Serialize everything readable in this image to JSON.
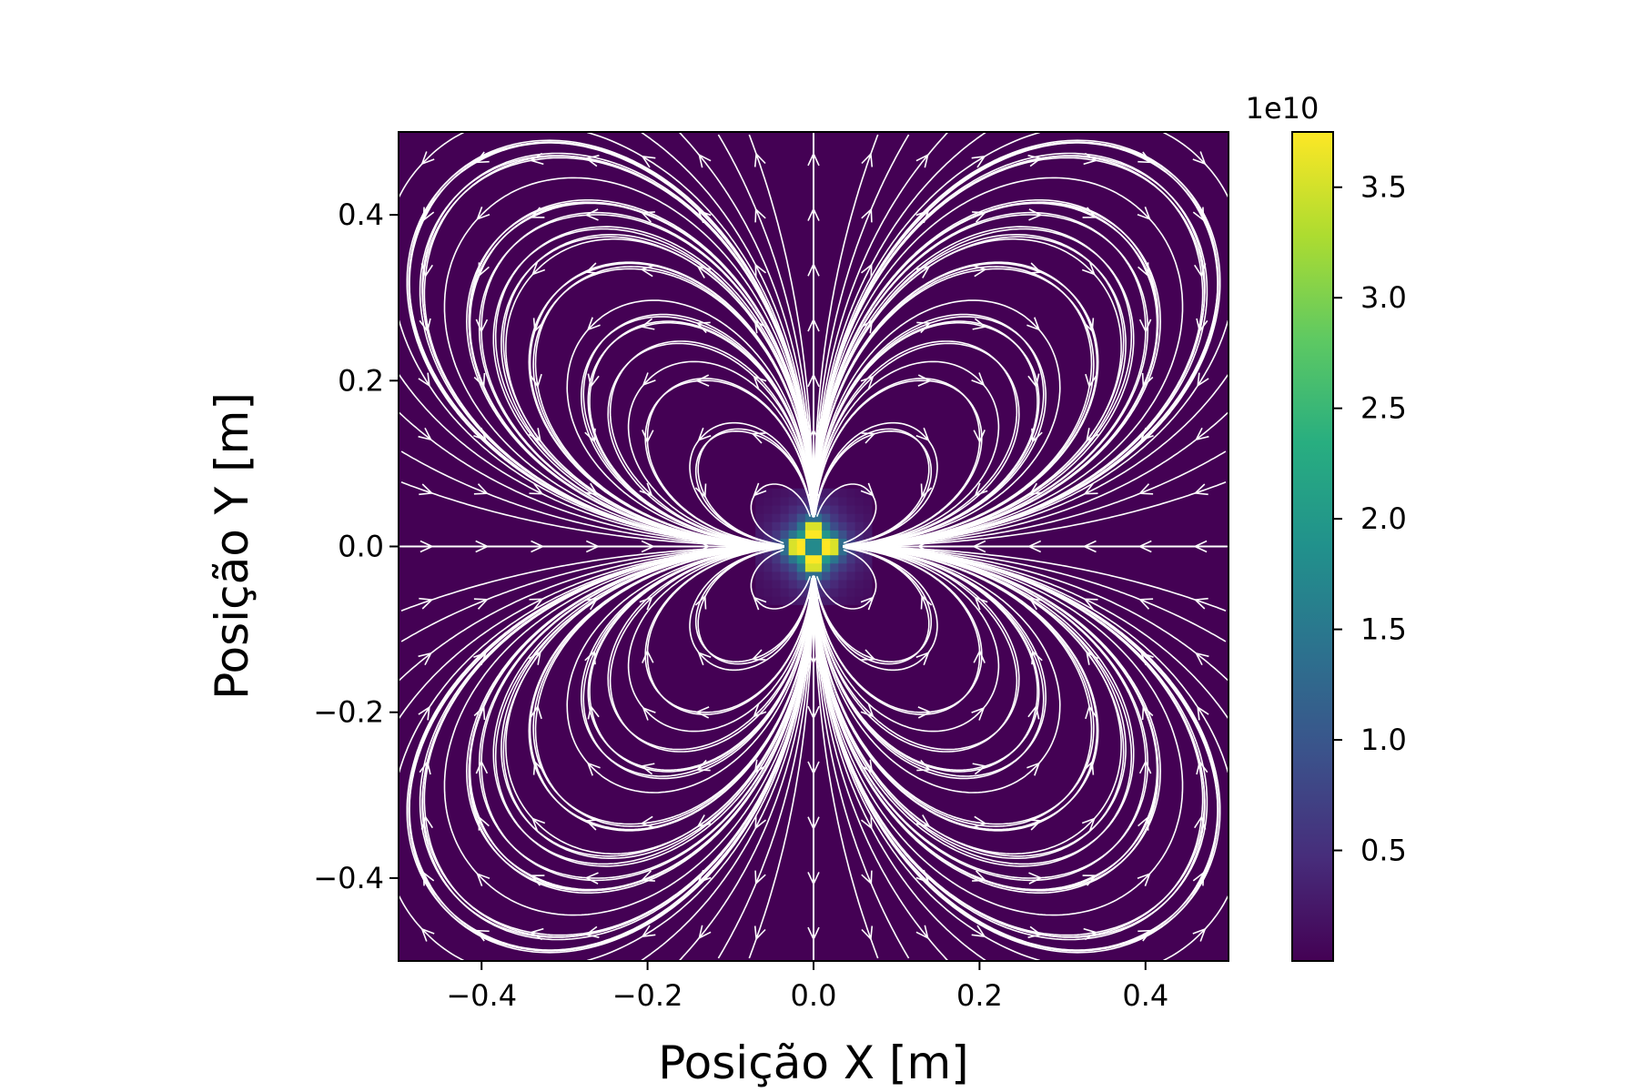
{
  "chart_data": {
    "type": "heatmap",
    "title": "",
    "xlabel": "Posição X [m]",
    "ylabel": "Posição Y [m]",
    "xlim": [
      -0.5,
      0.5
    ],
    "ylim": [
      -0.5,
      0.5
    ],
    "x_ticks": [
      -0.4,
      -0.2,
      0.0,
      0.2,
      0.4
    ],
    "y_ticks": [
      -0.4,
      -0.2,
      0.0,
      0.2,
      0.4
    ],
    "x_tick_labels": [
      "−0.4",
      "−0.2",
      "0.0",
      "0.2",
      "0.4"
    ],
    "y_tick_labels": [
      "−0.4",
      "−0.2",
      "0.0",
      "0.2",
      "0.4"
    ],
    "grid": false,
    "colormap": "viridis",
    "background_color": "#440154",
    "streamline_color": "#ffffff",
    "heatmap_field": "field magnitude",
    "source_charges": [
      {
        "x": 0.0,
        "y": 0.02,
        "q": 1
      },
      {
        "x": 0.0,
        "y": -0.02,
        "q": 1
      },
      {
        "x": -0.02,
        "y": 0.0,
        "q": -1
      },
      {
        "x": 0.02,
        "y": 0.0,
        "q": -1
      }
    ],
    "colorbar": {
      "min": 0.0,
      "max": 3.75,
      "ticks": [
        0.5,
        1.0,
        1.5,
        2.0,
        2.5,
        3.0,
        3.5
      ],
      "tick_labels": [
        "0.5",
        "1.0",
        "1.5",
        "2.0",
        "2.5",
        "3.0",
        "3.5"
      ],
      "scale_label": "1e10"
    },
    "streamlines": "quadrupole field lines with arrows, flowing from the ±y lobes toward the ±x lobes"
  }
}
